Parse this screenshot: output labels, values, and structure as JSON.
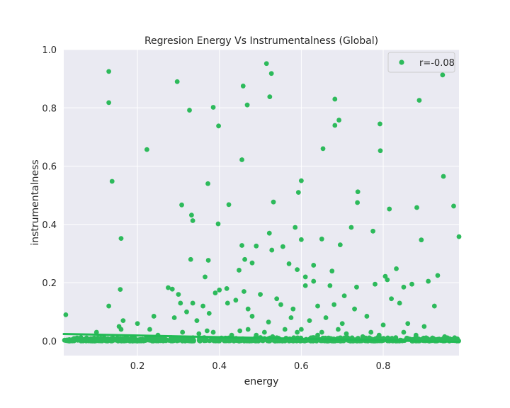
{
  "chart_data": {
    "type": "scatter",
    "title": "Regresion Energy Vs Instrumentalness (Global)",
    "xlabel": "energy",
    "ylabel": "instrumentalness",
    "xlim": [
      0.02,
      0.985
    ],
    "ylim": [
      -0.05,
      1.0
    ],
    "xticks": [
      0.2,
      0.4,
      0.6,
      0.8
    ],
    "yticks": [
      0.0,
      0.2,
      0.4,
      0.6,
      0.8,
      1.0
    ],
    "xtick_labels": [
      "0.2",
      "0.4",
      "0.6",
      "0.8"
    ],
    "ytick_labels": [
      "0.0",
      "0.2",
      "0.4",
      "0.6",
      "0.8",
      "1.0"
    ],
    "grid": true,
    "legend": {
      "label": "r=-0.08",
      "placement": "top-right"
    },
    "colors": {
      "points": "#2dba5b",
      "line": "#22bb55",
      "background": "#eaeaf2",
      "grid": "#ffffff"
    },
    "regression": {
      "x": [
        0.02,
        0.985
      ],
      "y": [
        0.024,
        -0.003
      ]
    },
    "points": [
      {
        "x": 0.13,
        "y": 0.925
      },
      {
        "x": 0.297,
        "y": 0.89
      },
      {
        "x": 0.515,
        "y": 0.952
      },
      {
        "x": 0.527,
        "y": 0.918
      },
      {
        "x": 0.945,
        "y": 0.913
      },
      {
        "x": 0.13,
        "y": 0.818
      },
      {
        "x": 0.327,
        "y": 0.792
      },
      {
        "x": 0.385,
        "y": 0.802
      },
      {
        "x": 0.468,
        "y": 0.81
      },
      {
        "x": 0.523,
        "y": 0.838
      },
      {
        "x": 0.682,
        "y": 0.83
      },
      {
        "x": 0.888,
        "y": 0.826
      },
      {
        "x": 0.458,
        "y": 0.875
      },
      {
        "x": 0.398,
        "y": 0.738
      },
      {
        "x": 0.682,
        "y": 0.74
      },
      {
        "x": 0.692,
        "y": 0.758
      },
      {
        "x": 0.792,
        "y": 0.745
      },
      {
        "x": 0.223,
        "y": 0.657
      },
      {
        "x": 0.455,
        "y": 0.622
      },
      {
        "x": 0.653,
        "y": 0.66
      },
      {
        "x": 0.793,
        "y": 0.653
      },
      {
        "x": 0.138,
        "y": 0.548
      },
      {
        "x": 0.6,
        "y": 0.55
      },
      {
        "x": 0.947,
        "y": 0.565
      },
      {
        "x": 0.372,
        "y": 0.54
      },
      {
        "x": 0.308,
        "y": 0.467
      },
      {
        "x": 0.423,
        "y": 0.468
      },
      {
        "x": 0.532,
        "y": 0.477
      },
      {
        "x": 0.593,
        "y": 0.51
      },
      {
        "x": 0.738,
        "y": 0.512
      },
      {
        "x": 0.972,
        "y": 0.463
      },
      {
        "x": 0.332,
        "y": 0.432
      },
      {
        "x": 0.335,
        "y": 0.413
      },
      {
        "x": 0.397,
        "y": 0.402
      },
      {
        "x": 0.737,
        "y": 0.475
      },
      {
        "x": 0.815,
        "y": 0.453
      },
      {
        "x": 0.882,
        "y": 0.458
      },
      {
        "x": 0.16,
        "y": 0.352
      },
      {
        "x": 0.522,
        "y": 0.37
      },
      {
        "x": 0.585,
        "y": 0.39
      },
      {
        "x": 0.722,
        "y": 0.39
      },
      {
        "x": 0.775,
        "y": 0.377
      },
      {
        "x": 0.985,
        "y": 0.358
      },
      {
        "x": 0.49,
        "y": 0.326
      },
      {
        "x": 0.455,
        "y": 0.328
      },
      {
        "x": 0.555,
        "y": 0.324
      },
      {
        "x": 0.6,
        "y": 0.348
      },
      {
        "x": 0.65,
        "y": 0.35
      },
      {
        "x": 0.695,
        "y": 0.33
      },
      {
        "x": 0.893,
        "y": 0.347
      },
      {
        "x": 0.528,
        "y": 0.312
      },
      {
        "x": 0.33,
        "y": 0.28
      },
      {
        "x": 0.373,
        "y": 0.277
      },
      {
        "x": 0.462,
        "y": 0.28
      },
      {
        "x": 0.48,
        "y": 0.268
      },
      {
        "x": 0.57,
        "y": 0.265
      },
      {
        "x": 0.63,
        "y": 0.26
      },
      {
        "x": 0.448,
        "y": 0.243
      },
      {
        "x": 0.59,
        "y": 0.245
      },
      {
        "x": 0.675,
        "y": 0.24
      },
      {
        "x": 0.832,
        "y": 0.248
      },
      {
        "x": 0.365,
        "y": 0.22
      },
      {
        "x": 0.61,
        "y": 0.22
      },
      {
        "x": 0.805,
        "y": 0.222
      },
      {
        "x": 0.933,
        "y": 0.225
      },
      {
        "x": 0.13,
        "y": 0.12
      },
      {
        "x": 0.158,
        "y": 0.177
      },
      {
        "x": 0.275,
        "y": 0.183
      },
      {
        "x": 0.285,
        "y": 0.178
      },
      {
        "x": 0.3,
        "y": 0.16
      },
      {
        "x": 0.39,
        "y": 0.165
      },
      {
        "x": 0.4,
        "y": 0.175
      },
      {
        "x": 0.418,
        "y": 0.18
      },
      {
        "x": 0.46,
        "y": 0.17
      },
      {
        "x": 0.5,
        "y": 0.16
      },
      {
        "x": 0.54,
        "y": 0.145
      },
      {
        "x": 0.61,
        "y": 0.19
      },
      {
        "x": 0.63,
        "y": 0.205
      },
      {
        "x": 0.67,
        "y": 0.19
      },
      {
        "x": 0.705,
        "y": 0.155
      },
      {
        "x": 0.735,
        "y": 0.185
      },
      {
        "x": 0.78,
        "y": 0.195
      },
      {
        "x": 0.81,
        "y": 0.21
      },
      {
        "x": 0.85,
        "y": 0.185
      },
      {
        "x": 0.87,
        "y": 0.195
      },
      {
        "x": 0.91,
        "y": 0.205
      },
      {
        "x": 0.305,
        "y": 0.13
      },
      {
        "x": 0.32,
        "y": 0.1
      },
      {
        "x": 0.335,
        "y": 0.13
      },
      {
        "x": 0.36,
        "y": 0.12
      },
      {
        "x": 0.375,
        "y": 0.095
      },
      {
        "x": 0.42,
        "y": 0.13
      },
      {
        "x": 0.44,
        "y": 0.14
      },
      {
        "x": 0.47,
        "y": 0.11
      },
      {
        "x": 0.55,
        "y": 0.125
      },
      {
        "x": 0.58,
        "y": 0.11
      },
      {
        "x": 0.64,
        "y": 0.12
      },
      {
        "x": 0.68,
        "y": 0.125
      },
      {
        "x": 0.73,
        "y": 0.11
      },
      {
        "x": 0.76,
        "y": 0.085
      },
      {
        "x": 0.82,
        "y": 0.145
      },
      {
        "x": 0.84,
        "y": 0.13
      },
      {
        "x": 0.925,
        "y": 0.12
      },
      {
        "x": 0.165,
        "y": 0.07
      },
      {
        "x": 0.2,
        "y": 0.06
      },
      {
        "x": 0.24,
        "y": 0.085
      },
      {
        "x": 0.29,
        "y": 0.08
      },
      {
        "x": 0.345,
        "y": 0.07
      },
      {
        "x": 0.48,
        "y": 0.085
      },
      {
        "x": 0.52,
        "y": 0.065
      },
      {
        "x": 0.575,
        "y": 0.08
      },
      {
        "x": 0.62,
        "y": 0.07
      },
      {
        "x": 0.66,
        "y": 0.08
      },
      {
        "x": 0.7,
        "y": 0.06
      },
      {
        "x": 0.8,
        "y": 0.055
      },
      {
        "x": 0.86,
        "y": 0.06
      },
      {
        "x": 0.9,
        "y": 0.05
      },
      {
        "x": 0.025,
        "y": 0.09
      },
      {
        "x": 0.07,
        "y": 0.005
      },
      {
        "x": 0.1,
        "y": 0.03
      },
      {
        "x": 0.11,
        "y": 0.01
      },
      {
        "x": 0.125,
        "y": 0.005
      },
      {
        "x": 0.14,
        "y": 0.01
      },
      {
        "x": 0.155,
        "y": 0.05
      },
      {
        "x": 0.16,
        "y": 0.04
      },
      {
        "x": 0.17,
        "y": 0.01
      },
      {
        "x": 0.23,
        "y": 0.04
      },
      {
        "x": 0.25,
        "y": 0.02
      },
      {
        "x": 0.27,
        "y": 0.005
      },
      {
        "x": 0.31,
        "y": 0.03
      },
      {
        "x": 0.33,
        "y": 0.01
      },
      {
        "x": 0.35,
        "y": 0.025
      },
      {
        "x": 0.37,
        "y": 0.035
      },
      {
        "x": 0.385,
        "y": 0.03
      },
      {
        "x": 0.41,
        "y": 0.005
      },
      {
        "x": 0.43,
        "y": 0.02
      },
      {
        "x": 0.45,
        "y": 0.035
      },
      {
        "x": 0.47,
        "y": 0.04
      },
      {
        "x": 0.49,
        "y": 0.02
      },
      {
        "x": 0.51,
        "y": 0.03
      },
      {
        "x": 0.53,
        "y": 0.015
      },
      {
        "x": 0.56,
        "y": 0.04
      },
      {
        "x": 0.59,
        "y": 0.03
      },
      {
        "x": 0.6,
        "y": 0.04
      },
      {
        "x": 0.64,
        "y": 0.02
      },
      {
        "x": 0.65,
        "y": 0.03
      },
      {
        "x": 0.69,
        "y": 0.04
      },
      {
        "x": 0.71,
        "y": 0.025
      },
      {
        "x": 0.75,
        "y": 0.015
      },
      {
        "x": 0.77,
        "y": 0.03
      },
      {
        "x": 0.79,
        "y": 0.02
      },
      {
        "x": 0.83,
        "y": 0.01
      },
      {
        "x": 0.85,
        "y": 0.03
      },
      {
        "x": 0.88,
        "y": 0.02
      },
      {
        "x": 0.92,
        "y": 0.01
      },
      {
        "x": 0.95,
        "y": 0.015
      },
      {
        "x": 0.97,
        "y": 0.005
      },
      {
        "x": 0.98,
        "y": 0.0
      }
    ],
    "dense_cluster": {
      "x_range": [
        0.02,
        0.985
      ],
      "y_range": [
        0.0,
        0.012
      ],
      "count": 700
    }
  }
}
